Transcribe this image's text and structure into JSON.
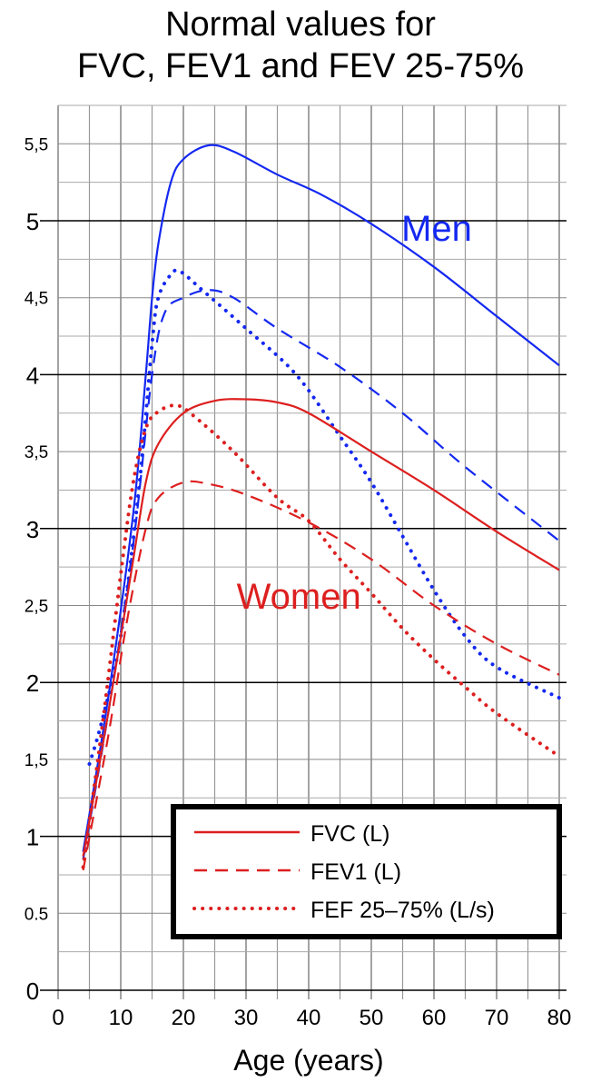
{
  "chart_data": {
    "type": "line",
    "title": [
      "Normal values for",
      "FVC, FEV1 and FEV 25-75%"
    ],
    "xlabel": "Age (years)",
    "ylabel": "",
    "xlim": [
      0,
      80
    ],
    "ylim": [
      0,
      5.75
    ],
    "xticks": [
      "0",
      "10",
      "20",
      "30",
      "40",
      "50",
      "60",
      "70",
      "80"
    ],
    "yticks": [
      {
        "v": 0,
        "label": "0"
      },
      {
        "v": 0.5,
        "label": "0.5"
      },
      {
        "v": 1,
        "label": "1"
      },
      {
        "v": 1.5,
        "label": "1,5"
      },
      {
        "v": 2,
        "label": "2"
      },
      {
        "v": 2.5,
        "label": "2,5"
      },
      {
        "v": 3,
        "label": "3"
      },
      {
        "v": 3.5,
        "label": "3,5"
      },
      {
        "v": 4,
        "label": "4"
      },
      {
        "v": 4.5,
        "label": "4,5"
      },
      {
        "v": 5,
        "label": "5"
      },
      {
        "v": 5.5,
        "label": "5,5"
      }
    ],
    "grid": true,
    "colors": {
      "men": "#1428f0",
      "women": "#dd1f1f"
    },
    "annotations": [
      {
        "text": "Men",
        "group": "men",
        "x": 60,
        "y": 4.87
      },
      {
        "text": "Women",
        "group": "women",
        "x": 38,
        "y": 2.48
      }
    ],
    "legend": {
      "placement": "bottom-right",
      "entries": [
        {
          "label": "FVC (L)",
          "style": "solid"
        },
        {
          "label": "FEV1 (L)",
          "style": "dashed"
        },
        {
          "label": "FEF 25–75% (L/s)",
          "style": "dotted"
        }
      ]
    },
    "series": [
      {
        "name": "Men FVC (L)",
        "group": "men",
        "style": "solid",
        "points": [
          [
            4,
            0.9
          ],
          [
            8,
            1.9
          ],
          [
            12,
            3.1
          ],
          [
            14,
            4.0
          ],
          [
            15,
            4.5
          ],
          [
            16,
            4.85
          ],
          [
            18,
            5.25
          ],
          [
            20,
            5.4
          ],
          [
            24,
            5.49
          ],
          [
            28,
            5.45
          ],
          [
            35,
            5.3
          ],
          [
            42,
            5.17
          ],
          [
            50,
            4.98
          ],
          [
            60,
            4.7
          ],
          [
            70,
            4.38
          ],
          [
            80,
            4.06
          ]
        ]
      },
      {
        "name": "Men FEV1 (L)",
        "group": "men",
        "style": "dashed",
        "points": [
          [
            4,
            0.85
          ],
          [
            8,
            1.8
          ],
          [
            12,
            2.9
          ],
          [
            15,
            4.0
          ],
          [
            17,
            4.4
          ],
          [
            20,
            4.5
          ],
          [
            24,
            4.55
          ],
          [
            28,
            4.5
          ],
          [
            35,
            4.3
          ],
          [
            45,
            4.05
          ],
          [
            55,
            3.75
          ],
          [
            65,
            3.4
          ],
          [
            80,
            2.92
          ]
        ]
      },
      {
        "name": "Men FEF 25–75% (L/s)",
        "group": "men",
        "style": "dotted",
        "points": [
          [
            5,
            1.47
          ],
          [
            7,
            1.75
          ],
          [
            10,
            2.3
          ],
          [
            13,
            3.3
          ],
          [
            15,
            4.2
          ],
          [
            16,
            4.5
          ],
          [
            18,
            4.65
          ],
          [
            19.5,
            4.67
          ],
          [
            23,
            4.55
          ],
          [
            30,
            4.3
          ],
          [
            38,
            4.0
          ],
          [
            45,
            3.6
          ],
          [
            50,
            3.3
          ],
          [
            55,
            2.95
          ],
          [
            60,
            2.6
          ],
          [
            65,
            2.3
          ],
          [
            70,
            2.1
          ],
          [
            80,
            1.9
          ]
        ]
      },
      {
        "name": "Women FVC (L)",
        "group": "women",
        "style": "solid",
        "points": [
          [
            4,
            0.87
          ],
          [
            8,
            1.8
          ],
          [
            12,
            2.8
          ],
          [
            14,
            3.3
          ],
          [
            16,
            3.55
          ],
          [
            20,
            3.75
          ],
          [
            25,
            3.83
          ],
          [
            30,
            3.84
          ],
          [
            35,
            3.82
          ],
          [
            40,
            3.75
          ],
          [
            50,
            3.5
          ],
          [
            60,
            3.25
          ],
          [
            70,
            2.98
          ],
          [
            80,
            2.73
          ]
        ]
      },
      {
        "name": "Women FEV1 (L)",
        "group": "women",
        "style": "dashed",
        "points": [
          [
            4,
            0.78
          ],
          [
            8,
            1.65
          ],
          [
            11,
            2.4
          ],
          [
            14,
            3.0
          ],
          [
            16,
            3.2
          ],
          [
            20,
            3.3
          ],
          [
            24,
            3.29
          ],
          [
            30,
            3.22
          ],
          [
            40,
            3.04
          ],
          [
            50,
            2.8
          ],
          [
            60,
            2.5
          ],
          [
            70,
            2.25
          ],
          [
            80,
            2.05
          ]
        ]
      },
      {
        "name": "Women FEF 25–75% (L/s)",
        "group": "women",
        "style": "dotted",
        "points": [
          [
            4,
            0.8
          ],
          [
            7,
            1.7
          ],
          [
            10,
            2.7
          ],
          [
            12,
            3.3
          ],
          [
            14,
            3.65
          ],
          [
            16,
            3.76
          ],
          [
            19,
            3.8
          ],
          [
            22,
            3.72
          ],
          [
            28,
            3.5
          ],
          [
            35,
            3.2
          ],
          [
            40,
            3.05
          ],
          [
            45,
            2.8
          ],
          [
            50,
            2.58
          ],
          [
            55,
            2.35
          ],
          [
            60,
            2.15
          ],
          [
            65,
            1.97
          ],
          [
            70,
            1.8
          ],
          [
            80,
            1.52
          ]
        ]
      }
    ]
  }
}
